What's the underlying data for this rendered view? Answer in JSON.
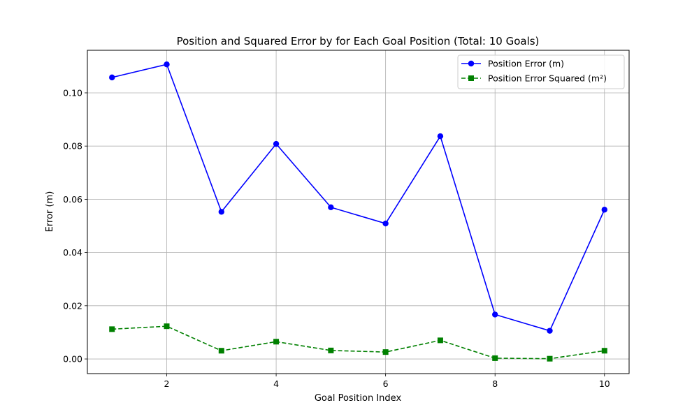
{
  "chart_data": {
    "type": "line",
    "title": "Position and Squared Error by for Each Goal Position (Total: 10 Goals)",
    "xlabel": "Goal Position Index",
    "ylabel": "Error (m)",
    "x": [
      1,
      2,
      3,
      4,
      5,
      6,
      7,
      8,
      9,
      10
    ],
    "xlim": [
      0.55,
      10.45
    ],
    "ylim": [
      -0.0055,
      0.116
    ],
    "xticks": [
      2,
      4,
      6,
      8,
      10
    ],
    "yticks": [
      0.0,
      0.02,
      0.04,
      0.06,
      0.08,
      0.1
    ],
    "xtick_labels": [
      "2",
      "4",
      "6",
      "8",
      "10"
    ],
    "ytick_labels": [
      "0.00",
      "0.02",
      "0.04",
      "0.06",
      "0.08",
      "0.10"
    ],
    "grid": true,
    "legend_position": "top-right",
    "series": [
      {
        "name": "Position Error (m)",
        "color": "#0000ff",
        "linestyle": "solid",
        "marker": "circle",
        "values": [
          0.1058,
          0.1107,
          0.0553,
          0.0808,
          0.057,
          0.0509,
          0.0837,
          0.0167,
          0.0106,
          0.0561
        ]
      },
      {
        "name": "Position Error Squared (m²)",
        "color": "#008000",
        "linestyle": "dashed",
        "marker": "square",
        "values": [
          0.0112,
          0.0123,
          0.0031,
          0.0065,
          0.0032,
          0.0026,
          0.007,
          0.0003,
          0.0001,
          0.0031
        ]
      }
    ]
  }
}
